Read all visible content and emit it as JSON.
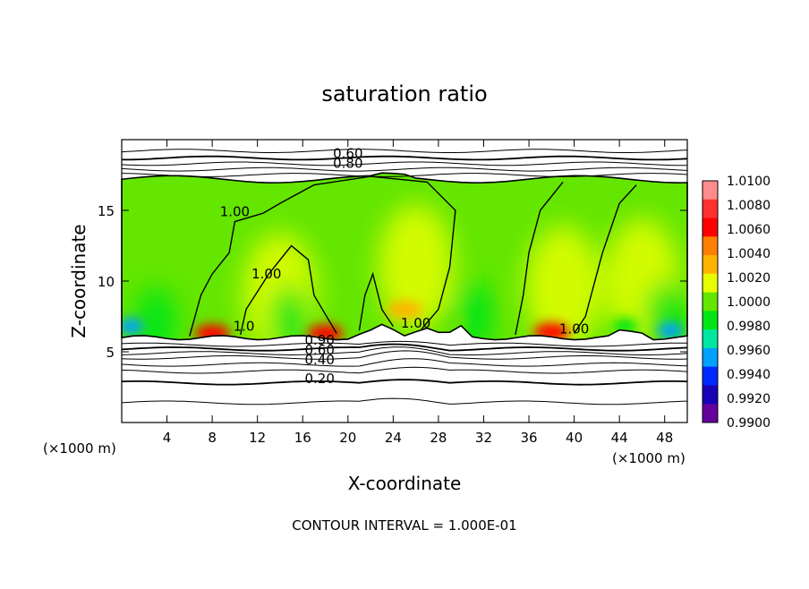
{
  "chart_data": {
    "type": "heatmap",
    "title": "saturation ratio",
    "xlabel": "X-coordinate",
    "ylabel": "Z-coordinate",
    "x_unit": "(×1000 m)",
    "footer": "CONTOUR INTERVAL = 1.000E-01",
    "xlim": [
      0,
      50
    ],
    "ylim": [
      0,
      20
    ],
    "x_ticks": [
      4,
      8,
      12,
      16,
      20,
      24,
      28,
      32,
      36,
      40,
      44,
      48
    ],
    "y_ticks": [
      5,
      10,
      15
    ],
    "colorbar": {
      "levels": [
        "1.0100",
        "1.0080",
        "1.0060",
        "1.0040",
        "1.0020",
        "1.0000",
        "0.9980",
        "0.9960",
        "0.9940",
        "0.9920",
        "0.9900"
      ],
      "values": [
        1.01,
        1.008,
        1.006,
        1.004,
        1.002,
        1.0,
        0.998,
        0.996,
        0.994,
        0.992,
        0.99
      ],
      "colors": [
        "#ff8c8c",
        "#ff3030",
        "#ff0000",
        "#ff8000",
        "#ffb400",
        "#e6ff00",
        "#64e600",
        "#00e614",
        "#00e6a0",
        "#00a0ff",
        "#0028ff",
        "#1800b4",
        "#64009c"
      ]
    },
    "contour_labels": [
      {
        "text": "0.60",
        "x": 20.0,
        "y": 18.7
      },
      {
        "text": "0.80",
        "x": 20.0,
        "y": 18.0
      },
      {
        "text": "1.00",
        "x": 10.0,
        "y": 14.6
      },
      {
        "text": "1.00",
        "x": 12.8,
        "y": 10.2
      },
      {
        "text": "1.0",
        "x": 10.8,
        "y": 6.5
      },
      {
        "text": "1.00",
        "x": 26.0,
        "y": 6.7
      },
      {
        "text": "1.00",
        "x": 40.0,
        "y": 6.3
      },
      {
        "text": "0.90",
        "x": 17.5,
        "y": 5.5
      },
      {
        "text": "0.60",
        "x": 17.5,
        "y": 4.8
      },
      {
        "text": "0.40",
        "x": 17.5,
        "y": 4.1
      },
      {
        "text": "0.20",
        "x": 17.5,
        "y": 2.8
      }
    ],
    "field": {
      "cloud_base_z": 6.0,
      "cloud_top_z": 17.2,
      "subsaturated_contours_z": [
        1.4,
        2.8,
        3.6,
        4.1,
        4.6,
        4.9,
        5.2,
        5.5,
        17.5,
        17.9,
        18.3,
        18.7,
        19.2
      ],
      "hot_spots": [
        {
          "x": 8.0,
          "z": 6.3,
          "value": 1.006
        },
        {
          "x": 18.0,
          "z": 6.3,
          "value": 1.006
        },
        {
          "x": 38.0,
          "z": 6.4,
          "value": 1.006
        },
        {
          "x": 25.0,
          "z": 8.0,
          "value": 1.003
        }
      ],
      "dry_spots": [
        {
          "x": 0.8,
          "z": 6.8,
          "value": 0.993
        },
        {
          "x": 48.5,
          "z": 6.5,
          "value": 0.992
        },
        {
          "x": 29.5,
          "z": 7.0,
          "value": 0.998
        },
        {
          "x": 44.5,
          "z": 6.8,
          "value": 0.996
        }
      ]
    }
  }
}
